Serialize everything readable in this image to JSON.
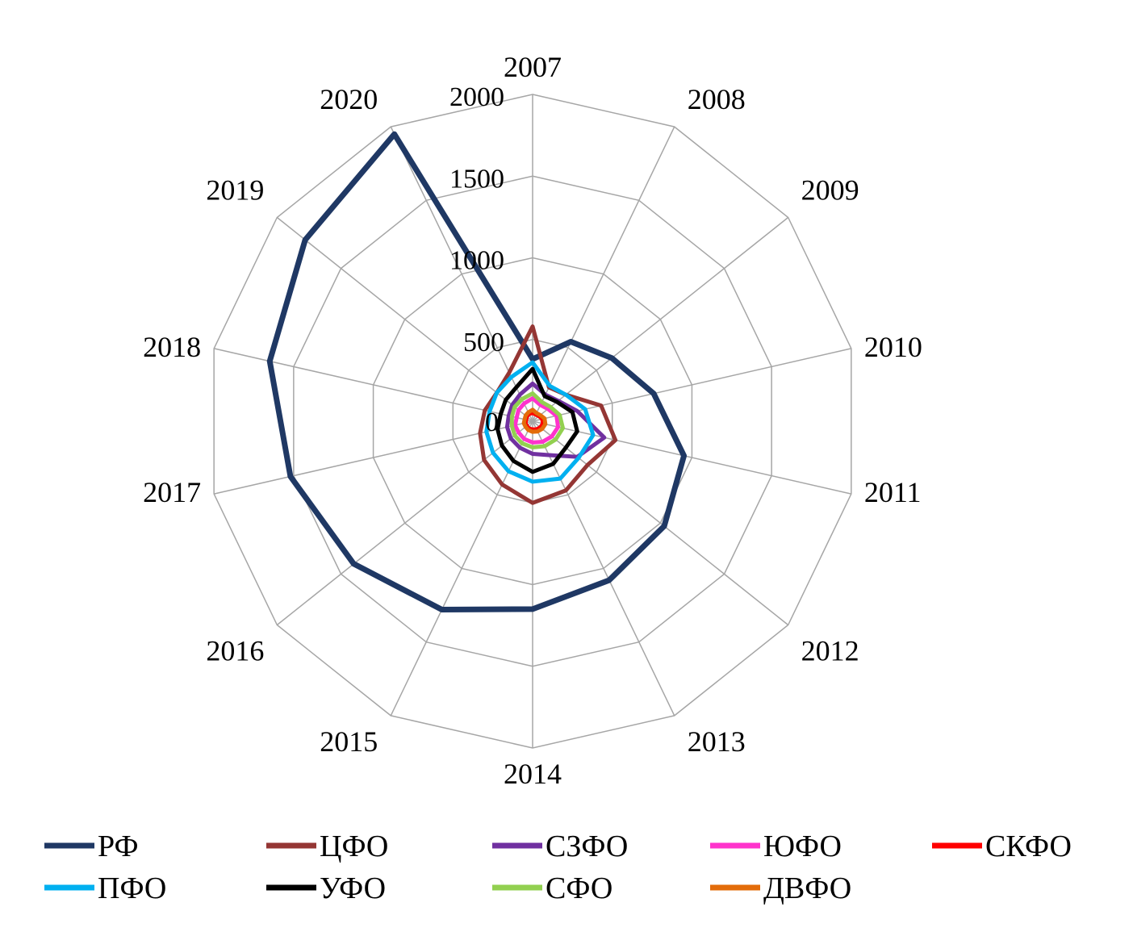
{
  "chart_data": {
    "type": "radar",
    "title": "",
    "categories": [
      "2007",
      "2008",
      "2009",
      "2010",
      "2011",
      "2012",
      "2013",
      "2014",
      "2015",
      "2016",
      "2017",
      "2018",
      "2019",
      "2020"
    ],
    "radial_ticks": [
      0,
      500,
      1000,
      1500,
      2000
    ],
    "rlim": [
      0,
      2000
    ],
    "grid": true,
    "grid_color": "#a6a6a6",
    "legend_position": "bottom",
    "series": [
      {
        "name": "РФ",
        "color": "#1f3864",
        "width": 7,
        "values": [
          380,
          540,
          620,
          760,
          950,
          1030,
          1080,
          1150,
          1280,
          1400,
          1520,
          1650,
          1780,
          1950
        ]
      },
      {
        "name": "ЦФО",
        "color": "#943634",
        "width": 5,
        "values": [
          580,
          230,
          260,
          430,
          520,
          430,
          470,
          500,
          430,
          380,
          330,
          300,
          280,
          330
        ]
      },
      {
        "name": "СЗФО",
        "color": "#7030a0",
        "width": 5,
        "values": [
          230,
          180,
          200,
          280,
          450,
          350,
          230,
          200,
          180,
          170,
          160,
          150,
          160,
          180
        ]
      },
      {
        "name": "ЮФО",
        "color": "#ff33cc",
        "width": 5,
        "values": [
          140,
          110,
          120,
          150,
          160,
          150,
          140,
          130,
          120,
          110,
          110,
          100,
          110,
          120
        ]
      },
      {
        "name": "СКФО",
        "color": "#ff0000",
        "width": 5,
        "values": [
          50,
          45,
          50,
          60,
          65,
          60,
          55,
          50,
          50,
          45,
          45,
          40,
          45,
          50
        ]
      },
      {
        "name": "ПФО",
        "color": "#00b0f0",
        "width": 5,
        "values": [
          360,
          240,
          260,
          330,
          380,
          360,
          390,
          370,
          340,
          310,
          290,
          270,
          280,
          300
        ]
      },
      {
        "name": "УФО",
        "color": "#000000",
        "width": 5,
        "values": [
          320,
          170,
          190,
          250,
          280,
          260,
          290,
          310,
          270,
          240,
          220,
          200,
          210,
          230
        ]
      },
      {
        "name": "СФО",
        "color": "#92d050",
        "width": 5,
        "values": [
          170,
          130,
          140,
          170,
          190,
          180,
          170,
          160,
          150,
          140,
          130,
          130,
          140,
          150
        ]
      },
      {
        "name": "ДВФО",
        "color": "#e36c0a",
        "width": 5,
        "values": [
          70,
          55,
          60,
          75,
          80,
          75,
          70,
          65,
          60,
          55,
          55,
          50,
          55,
          60
        ]
      }
    ]
  },
  "layout_text": {
    "note": ""
  }
}
